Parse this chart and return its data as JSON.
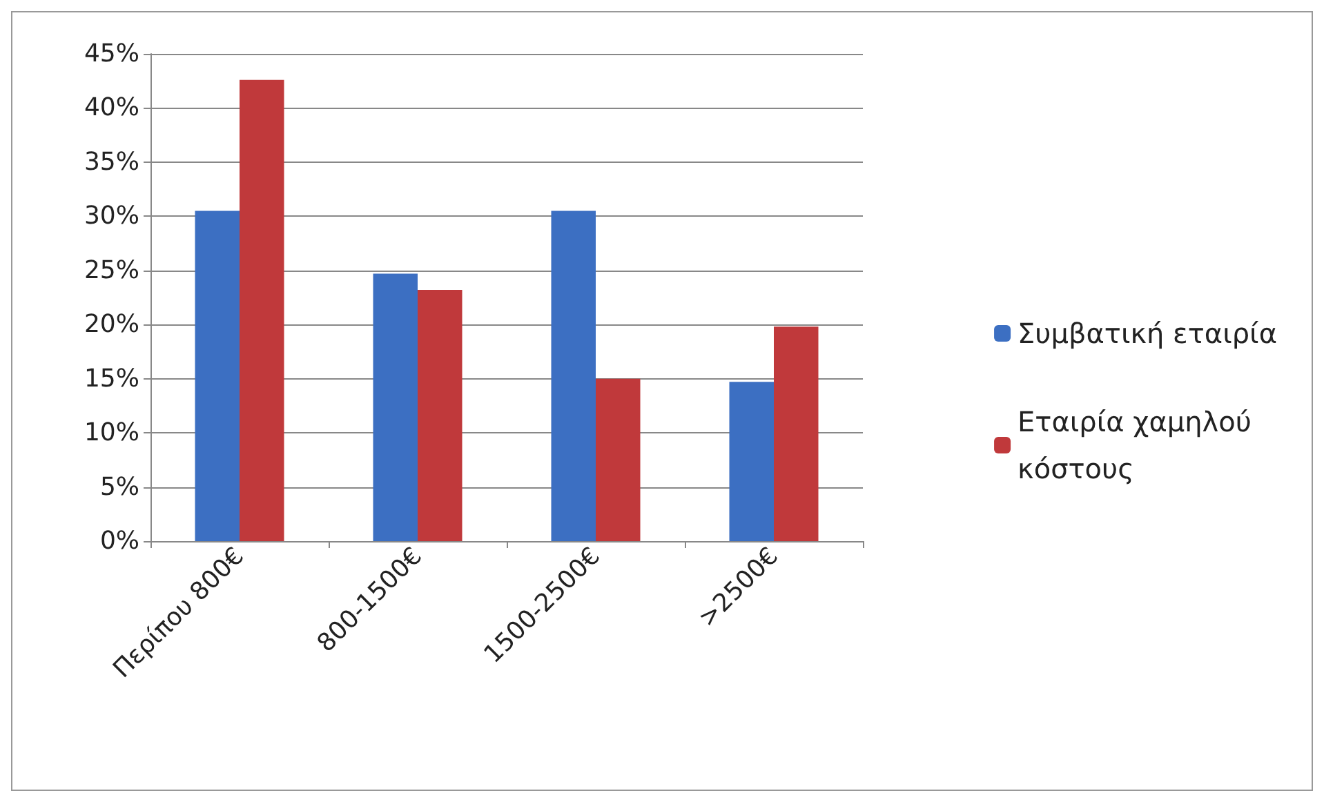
{
  "chart_data": {
    "type": "bar",
    "categories": [
      "Περίπου 800€",
      "800-1500€",
      "1500-2500€",
      ">2500€"
    ],
    "series": [
      {
        "name": "Συμβατική εταιρία",
        "color": "#3c6fc2",
        "values": [
          30.5,
          24.7,
          30.5,
          14.7
        ]
      },
      {
        "name": "Εταιρία χαμηλού\nκόστους",
        "color": "#c0393b",
        "values": [
          42.6,
          23.2,
          15.0,
          19.8
        ]
      }
    ],
    "ylim": [
      0,
      45
    ],
    "yticks": [
      {
        "value": 0,
        "label": "0%"
      },
      {
        "value": 5,
        "label": "5%"
      },
      {
        "value": 10,
        "label": "10%"
      },
      {
        "value": 15,
        "label": "15%"
      },
      {
        "value": 20,
        "label": "20%"
      },
      {
        "value": 25,
        "label": "25%"
      },
      {
        "value": 30,
        "label": "30%"
      },
      {
        "value": 35,
        "label": "35%"
      },
      {
        "value": 40,
        "label": "40%"
      },
      {
        "value": 45,
        "label": "45%"
      }
    ],
    "grid": "y",
    "legend": "right"
  }
}
